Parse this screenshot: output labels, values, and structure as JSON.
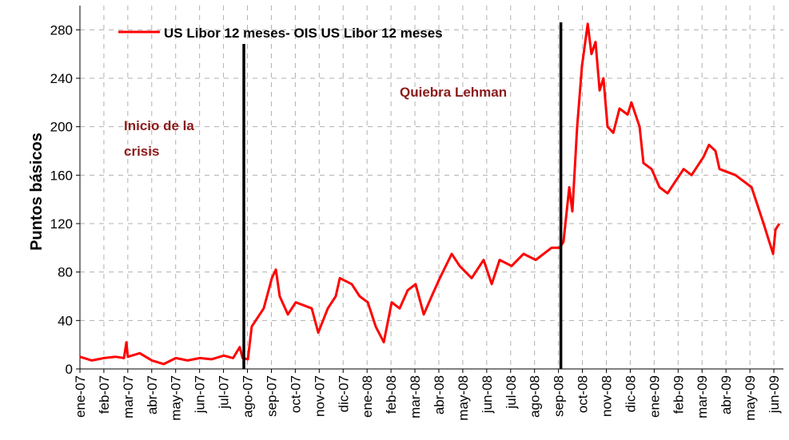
{
  "chart_data": {
    "type": "line",
    "y_label": "Puntos básicos",
    "x": [
      0,
      0.5,
      1.0,
      1.5,
      1.84,
      1.94,
      2.0,
      2.5,
      3.01,
      3.5,
      4.01,
      4.5,
      5.01,
      5.5,
      6.01,
      6.4,
      6.68,
      6.8,
      7.02,
      7.18,
      7.68,
      8.02,
      8.19,
      8.35,
      8.69,
      9.02,
      9.69,
      9.96,
      10.36,
      10.69,
      10.86,
      11.36,
      11.69,
      12.03,
      12.36,
      12.7,
      13.03,
      13.36,
      13.7,
      14.03,
      14.37,
      14.7,
      15.04,
      15.54,
      15.87,
      16.37,
      16.87,
      17.21,
      17.54,
      18.04,
      18.54,
      19.05,
      19.71,
      20.05,
      20.21,
      20.45,
      20.58,
      20.78,
      20.98,
      21.22,
      21.38,
      21.55,
      21.72,
      21.88,
      22.05,
      22.29,
      22.55,
      22.89,
      23.05,
      23.39,
      23.55,
      23.89,
      24.22,
      24.56,
      24.89,
      25.23,
      25.56,
      26.06,
      26.29,
      26.56,
      26.73,
      27.4,
      28.07,
      28.57,
      28.97,
      29.07,
      29.23
    ],
    "series": [
      {
        "name": "US Libor 12 meses- OIS US Libor 12 meses",
        "color": "#ff0000",
        "values": [
          10,
          7,
          9,
          10,
          9,
          22,
          10,
          13,
          7,
          4,
          9,
          7,
          9,
          8,
          11,
          9,
          18,
          9,
          8,
          35,
          50,
          75,
          82,
          60,
          45,
          55,
          50,
          30,
          50,
          60,
          75,
          70,
          60,
          55,
          35,
          22,
          55,
          50,
          65,
          70,
          45,
          60,
          75,
          95,
          85,
          75,
          90,
          70,
          90,
          85,
          95,
          90,
          100,
          100,
          105,
          150,
          130,
          200,
          250,
          285,
          260,
          270,
          230,
          240,
          200,
          195,
          215,
          210,
          220,
          200,
          170,
          165,
          150,
          145,
          155,
          165,
          160,
          175,
          185,
          180,
          165,
          160,
          150,
          120,
          95,
          115,
          120
        ]
      }
    ],
    "xlim": [
      0,
      29.4
    ],
    "xticks": [
      {
        "value": 0,
        "label": "ene-07"
      },
      {
        "value": 1,
        "label": "feb-07"
      },
      {
        "value": 2,
        "label": "mar-07"
      },
      {
        "value": 3,
        "label": "abr-07"
      },
      {
        "value": 4,
        "label": "may-07"
      },
      {
        "value": 5,
        "label": "jun-07"
      },
      {
        "value": 6,
        "label": "jul-07"
      },
      {
        "value": 7,
        "label": "ago-07"
      },
      {
        "value": 8,
        "label": "sep-07"
      },
      {
        "value": 9,
        "label": "oct-07"
      },
      {
        "value": 10,
        "label": "nov-07"
      },
      {
        "value": 11,
        "label": "dic-07"
      },
      {
        "value": 12,
        "label": "ene-08"
      },
      {
        "value": 13,
        "label": "feb-08"
      },
      {
        "value": 14,
        "label": "mar-08"
      },
      {
        "value": 15,
        "label": "abr-08"
      },
      {
        "value": 16,
        "label": "may-08"
      },
      {
        "value": 17,
        "label": "jun-08"
      },
      {
        "value": 18,
        "label": "jul-08"
      },
      {
        "value": 19,
        "label": "ago-08"
      },
      {
        "value": 20,
        "label": "sep-08"
      },
      {
        "value": 21,
        "label": "oct-08"
      },
      {
        "value": 22,
        "label": "nov-08"
      },
      {
        "value": 23,
        "label": "dic-08"
      },
      {
        "value": 24,
        "label": "ene-09"
      },
      {
        "value": 25,
        "label": "feb-09"
      },
      {
        "value": 26,
        "label": "mar-09"
      },
      {
        "value": 27,
        "label": "abr-09"
      },
      {
        "value": 28,
        "label": "may-09"
      },
      {
        "value": 29,
        "label": "jun-09"
      }
    ],
    "ylim": [
      0,
      300
    ],
    "yticks": [
      0,
      40,
      80,
      120,
      160,
      200,
      240,
      280
    ],
    "grid": true,
    "events": [
      {
        "label": "Inicio de la crisis",
        "x": 6.85
      },
      {
        "label": "Quiebra Lehman",
        "x": 20.1
      }
    ]
  }
}
